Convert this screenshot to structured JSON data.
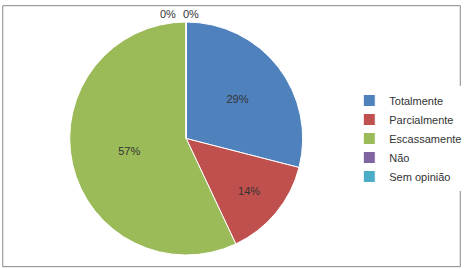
{
  "chart_data": {
    "type": "pie",
    "categories": [
      "Totalmente",
      "Parcialmente",
      "Escassamente",
      "Não",
      "Sem opinião"
    ],
    "values": [
      29,
      14,
      57,
      0,
      0
    ],
    "value_labels": [
      "29%",
      "14%",
      "57%",
      "0%",
      "0%"
    ],
    "colors": [
      "#4f81bd",
      "#c0504d",
      "#9bbb59",
      "#8064a2",
      "#4bacc6"
    ],
    "data_labels": true,
    "legend": "right"
  }
}
